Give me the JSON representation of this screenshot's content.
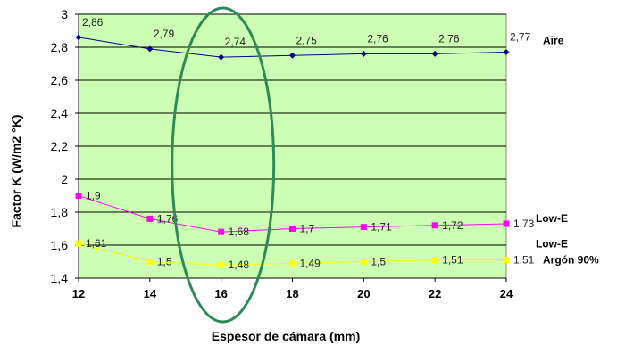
{
  "chart_data": {
    "type": "line",
    "xlabel": "Espesor de cámara (mm)",
    "ylabel": "Factor K (W/m2 °K)",
    "xlim": [
      12,
      24
    ],
    "ylim": [
      1.4,
      3.0
    ],
    "x_ticks": [
      "12",
      "14",
      "16",
      "18",
      "20",
      "22",
      "24"
    ],
    "y_ticks": [
      "1,4",
      "1,6",
      "1,8",
      "2",
      "2,2",
      "2,4",
      "2,6",
      "2,8",
      "3"
    ],
    "grid": "horizontal",
    "plot_background": "#ccffb3",
    "highlight": {
      "shape": "ellipse",
      "x": 16,
      "color": "#2e8b57"
    },
    "x": [
      12,
      14,
      16,
      18,
      20,
      22,
      24
    ],
    "series": [
      {
        "name": "Aire",
        "color": "#00008b",
        "marker": "diamond",
        "values": [
          2.86,
          2.79,
          2.74,
          2.75,
          2.76,
          2.76,
          2.77
        ],
        "labels": [
          "2,86",
          "2,79",
          "2,74",
          "2,75",
          "2,76",
          "2,76",
          "2,77"
        ]
      },
      {
        "name": "Low-E",
        "color": "#ff00ff",
        "marker": "square",
        "values": [
          1.9,
          1.76,
          1.68,
          1.7,
          1.71,
          1.72,
          1.73
        ],
        "labels": [
          "1,9",
          "1,76",
          "1,68",
          "1,7",
          "1,71",
          "1,72",
          "1,73"
        ]
      },
      {
        "name": "Low-E Argón 90%",
        "name_lines": [
          "Low-E",
          "Argón 90%"
        ],
        "color": "#ffff00",
        "marker": "square",
        "values": [
          1.61,
          1.5,
          1.48,
          1.49,
          1.5,
          1.51,
          1.51
        ],
        "labels": [
          "1,61",
          "1,5",
          "1,48",
          "1,49",
          "1,5",
          "1,51",
          "1,51"
        ]
      }
    ]
  }
}
